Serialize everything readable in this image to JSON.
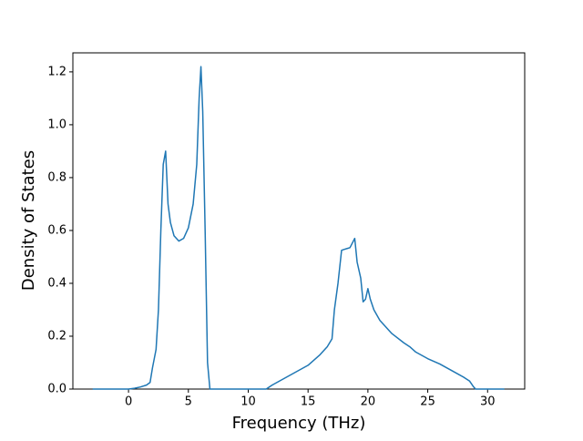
{
  "chart_data": {
    "type": "line",
    "xlabel": "Frequency (THz)",
    "ylabel": "Density of States",
    "x": [
      -3,
      0,
      0.5,
      1,
      1.5,
      1.8,
      2,
      2.3,
      2.5,
      2.7,
      2.9,
      3.1,
      3.3,
      3.5,
      3.8,
      4.2,
      4.6,
      5,
      5.4,
      5.7,
      5.9,
      6.05,
      6.2,
      6.4,
      6.6,
      6.8,
      7,
      11.5,
      12,
      13,
      14,
      15,
      16,
      16.6,
      17,
      17.2,
      17.5,
      17.8,
      18,
      18.5,
      18.9,
      19.1,
      19.4,
      19.6,
      19.8,
      20,
      20.2,
      20.5,
      21,
      22,
      23,
      23.5,
      24,
      25,
      26,
      27,
      28,
      28.5,
      28.8,
      29,
      31.4
    ],
    "series": [
      {
        "color": "#1f77b4",
        "values": [
          0,
          0,
          0.003,
          0.008,
          0.015,
          0.025,
          0.08,
          0.15,
          0.3,
          0.6,
          0.85,
          0.9,
          0.7,
          0.63,
          0.58,
          0.56,
          0.57,
          0.61,
          0.7,
          0.85,
          1.1,
          1.22,
          1.05,
          0.6,
          0.1,
          0,
          0,
          0,
          0.015,
          0.04,
          0.065,
          0.09,
          0.13,
          0.16,
          0.19,
          0.3,
          0.4,
          0.525,
          0.528,
          0.535,
          0.57,
          0.48,
          0.42,
          0.33,
          0.34,
          0.38,
          0.34,
          0.3,
          0.26,
          0.21,
          0.175,
          0.16,
          0.14,
          0.115,
          0.095,
          0.07,
          0.045,
          0.03,
          0.01,
          0,
          0
        ]
      }
    ],
    "xlim": [
      -4.65,
      33.1
    ],
    "xticks": [
      0,
      5,
      10,
      15,
      20,
      25,
      30
    ],
    "ylim": [
      0,
      1.272
    ],
    "yticks": [
      {
        "value": 0,
        "label": "0.0"
      },
      0.2,
      0.4,
      0.6,
      0.8,
      {
        "value": 1,
        "label": "1.0"
      },
      1.2
    ],
    "grid": false
  }
}
